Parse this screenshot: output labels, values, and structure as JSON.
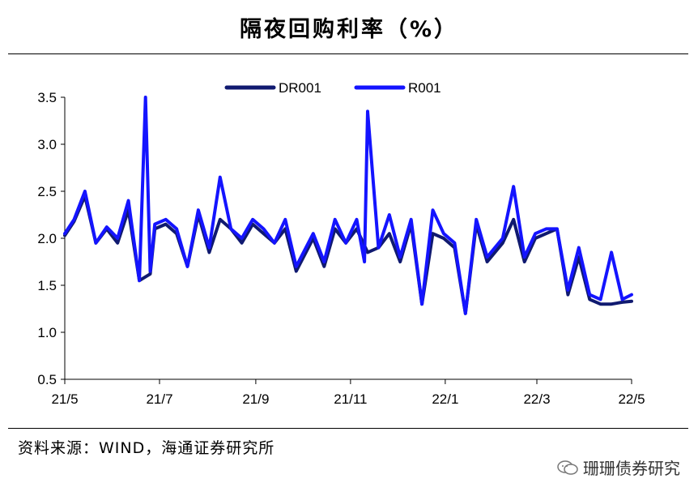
{
  "title": "隔夜回购利率（%）",
  "source": "资料来源：WIND，海通证券研究所",
  "watermark": "珊珊债券研究",
  "chart_data": {
    "type": "line",
    "title": "隔夜回购利率（%）",
    "xlabel": "",
    "ylabel": "",
    "ylim": [
      0.5,
      3.5
    ],
    "yticks": [
      "0.5",
      "1.0",
      "1.5",
      "2.0",
      "2.5",
      "3.0",
      "3.5"
    ],
    "xticks": [
      "21/5",
      "21/7",
      "21/9",
      "21/11",
      "22/1",
      "22/3",
      "22/5"
    ],
    "x_range_months": [
      "2021-05",
      "2022-05"
    ],
    "grid": false,
    "legend_position": "top",
    "colors": {
      "DR001": "#101a70",
      "R001": "#1414ff"
    },
    "series": [
      {
        "name": "DR001",
        "x": [
          "2021-05-01",
          "2021-05-07",
          "2021-05-14",
          "2021-05-21",
          "2021-05-28",
          "2021-06-04",
          "2021-06-11",
          "2021-06-18",
          "2021-06-25",
          "2021-06-28",
          "2021-07-05",
          "2021-07-12",
          "2021-07-19",
          "2021-07-26",
          "2021-08-02",
          "2021-08-09",
          "2021-08-16",
          "2021-08-23",
          "2021-08-30",
          "2021-09-06",
          "2021-09-13",
          "2021-09-20",
          "2021-09-27",
          "2021-10-08",
          "2021-10-15",
          "2021-10-22",
          "2021-10-29",
          "2021-11-05",
          "2021-11-12",
          "2021-11-19",
          "2021-11-26",
          "2021-12-03",
          "2021-12-10",
          "2021-12-17",
          "2021-12-24",
          "2021-12-31",
          "2022-01-07",
          "2022-01-14",
          "2022-01-21",
          "2022-01-28",
          "2022-02-07",
          "2022-02-14",
          "2022-02-21",
          "2022-02-28",
          "2022-03-07",
          "2022-03-14",
          "2022-03-21",
          "2022-03-28",
          "2022-04-04",
          "2022-04-11",
          "2022-04-18",
          "2022-04-25",
          "2022-05-01"
        ],
        "values": [
          2.03,
          2.18,
          2.45,
          1.95,
          2.1,
          1.95,
          2.3,
          1.55,
          1.62,
          2.1,
          2.15,
          2.05,
          1.7,
          2.25,
          1.85,
          2.2,
          2.1,
          1.95,
          2.15,
          2.05,
          1.95,
          2.1,
          1.65,
          2.0,
          1.7,
          2.1,
          1.95,
          2.1,
          1.85,
          1.9,
          2.05,
          1.75,
          2.15,
          1.3,
          2.05,
          2.0,
          1.9,
          1.2,
          2.15,
          1.75,
          1.95,
          2.2,
          1.75,
          2.0,
          2.05,
          2.1,
          1.4,
          1.8,
          1.35,
          1.3,
          1.3,
          1.32,
          1.33
        ]
      },
      {
        "name": "R001",
        "x": [
          "2021-05-01",
          "2021-05-07",
          "2021-05-14",
          "2021-05-21",
          "2021-05-28",
          "2021-06-04",
          "2021-06-11",
          "2021-06-18",
          "2021-06-22",
          "2021-06-25",
          "2021-06-28",
          "2021-07-05",
          "2021-07-12",
          "2021-07-19",
          "2021-07-26",
          "2021-08-02",
          "2021-08-09",
          "2021-08-16",
          "2021-08-23",
          "2021-08-30",
          "2021-09-06",
          "2021-09-13",
          "2021-09-20",
          "2021-09-27",
          "2021-10-08",
          "2021-10-15",
          "2021-10-22",
          "2021-10-29",
          "2021-11-05",
          "2021-11-10",
          "2021-11-12",
          "2021-11-19",
          "2021-11-26",
          "2021-12-03",
          "2021-12-10",
          "2021-12-17",
          "2021-12-24",
          "2021-12-31",
          "2022-01-07",
          "2022-01-14",
          "2022-01-21",
          "2022-01-28",
          "2022-02-07",
          "2022-02-14",
          "2022-02-21",
          "2022-02-28",
          "2022-03-07",
          "2022-03-14",
          "2022-03-21",
          "2022-03-28",
          "2022-04-04",
          "2022-04-11",
          "2022-04-18",
          "2022-04-25",
          "2022-05-01"
        ],
        "values": [
          2.05,
          2.2,
          2.5,
          1.95,
          2.12,
          2.0,
          2.4,
          1.55,
          3.5,
          1.65,
          2.15,
          2.2,
          2.1,
          1.7,
          2.3,
          1.9,
          2.65,
          2.1,
          2.0,
          2.2,
          2.1,
          1.95,
          2.2,
          1.7,
          2.05,
          1.75,
          2.2,
          1.95,
          2.2,
          1.75,
          3.35,
          1.9,
          2.25,
          1.8,
          2.2,
          1.3,
          2.3,
          2.05,
          1.95,
          1.2,
          2.2,
          1.8,
          2.0,
          2.55,
          1.8,
          2.05,
          2.1,
          2.1,
          1.45,
          1.9,
          1.4,
          1.35,
          1.85,
          1.35,
          1.4
        ]
      }
    ]
  }
}
